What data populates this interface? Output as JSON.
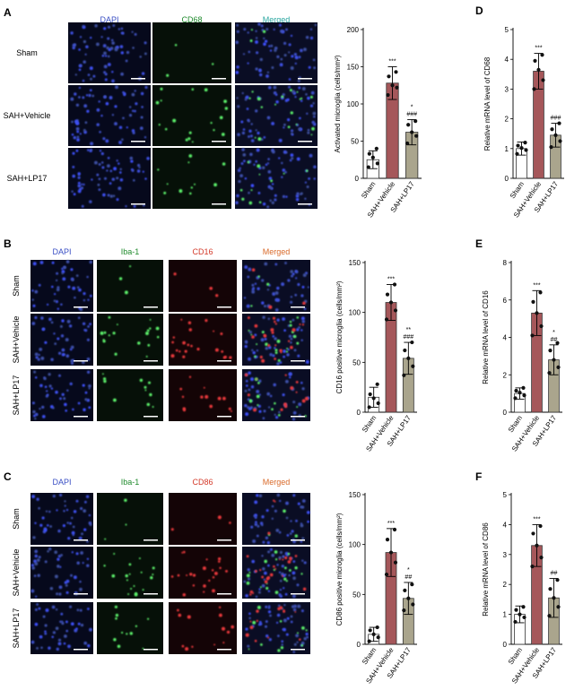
{
  "colors": {
    "sham_bar": "#ffffff",
    "vehicle_bar": "#a5575a",
    "lp17_bar": "#aaa58d",
    "dapi_label": "#3a4fc4",
    "green_label": "#1f8a2c",
    "red_label": "#d43a2a",
    "merged_label": "#d96a2a",
    "merged_label_a": "#2aa6a0",
    "micro_bg": "#0d1330"
  },
  "panels": [
    {
      "letter": "A",
      "channels": [
        {
          "label": "DAPI",
          "color": "dapi_label",
          "stain": "blue"
        },
        {
          "label": "CD68",
          "color": "green_label",
          "stain": "green"
        },
        {
          "label": "Merged",
          "color": "merged_label_a",
          "stain": "merged"
        }
      ],
      "row_labels": [
        "Sham",
        "SAH+Vehicle",
        "SAH+LP17"
      ],
      "row_label_style": "horizontal"
    },
    {
      "letter": "B",
      "channels": [
        {
          "label": "DAPI",
          "color": "dapi_label",
          "stain": "blue"
        },
        {
          "label": "Iba-1",
          "color": "green_label",
          "stain": "green"
        },
        {
          "label": "CD16",
          "color": "red_label",
          "stain": "red"
        },
        {
          "label": "Merged",
          "color": "merged_label",
          "stain": "merged"
        }
      ],
      "row_labels": [
        "Sham",
        "SAH+Vehicle",
        "SAH+LP17"
      ],
      "row_label_style": "vertical"
    },
    {
      "letter": "C",
      "channels": [
        {
          "label": "DAPI",
          "color": "dapi_label",
          "stain": "blue"
        },
        {
          "label": "Iba-1",
          "color": "green_label",
          "stain": "green"
        },
        {
          "label": "CD86",
          "color": "red_label",
          "stain": "red"
        },
        {
          "label": "Merged",
          "color": "merged_label",
          "stain": "merged"
        }
      ],
      "row_labels": [
        "Sham",
        "SAH+Vehicle",
        "SAH+LP17"
      ],
      "row_label_style": "vertical"
    }
  ],
  "chart_data": [
    {
      "type": "bar",
      "panel": "A",
      "ylabel": "Activated microglia (cells/mm²)",
      "ylim": [
        0,
        200
      ],
      "yticks": [
        0,
        50,
        100,
        150,
        200
      ],
      "categories": [
        "Sham",
        "SAH+Vehicle",
        "SAH+LP17"
      ],
      "values": [
        25,
        128,
        62
      ],
      "errors": [
        12,
        22,
        17
      ],
      "points": [
        [
          15,
          20,
          28,
          33,
          40
        ],
        [
          112,
          122,
          125,
          137,
          143
        ],
        [
          47,
          57,
          62,
          72,
          77
        ]
      ],
      "annotations": [
        [],
        [
          "***"
        ],
        [
          "*",
          "###"
        ]
      ]
    },
    {
      "type": "bar",
      "panel": "D",
      "ylabel": "Relative mRNA level of CD68",
      "ylim": [
        0,
        5
      ],
      "yticks": [
        0,
        1,
        2,
        3,
        4,
        5
      ],
      "categories": [
        "Sham",
        "SAH+Vehicle",
        "SAH+LP17"
      ],
      "values": [
        1.0,
        3.6,
        1.45
      ],
      "errors": [
        0.22,
        0.6,
        0.4
      ],
      "points": [
        [
          0.82,
          0.95,
          1.02,
          1.1,
          1.2
        ],
        [
          3.0,
          3.3,
          3.65,
          3.95,
          4.15
        ],
        [
          1.05,
          1.25,
          1.45,
          1.65,
          1.85
        ]
      ],
      "annotations": [
        [],
        [
          "***"
        ],
        [
          "###"
        ]
      ]
    },
    {
      "type": "bar",
      "panel": "B",
      "ylabel": "CD16 positive microglia (cells/mm²)",
      "ylim": [
        0,
        150
      ],
      "yticks": [
        0,
        50,
        100,
        150
      ],
      "categories": [
        "Sham",
        "SAH+Vehicle",
        "SAH+LP17"
      ],
      "values": [
        15,
        110,
        54
      ],
      "errors": [
        10,
        18,
        16
      ],
      "points": [
        [
          5,
          9,
          14,
          18,
          28
        ],
        [
          93,
          102,
          110,
          118,
          128
        ],
        [
          37,
          46,
          54,
          62,
          70
        ]
      ],
      "annotations": [
        [],
        [
          "***"
        ],
        [
          "**",
          "###"
        ]
      ]
    },
    {
      "type": "bar",
      "panel": "E",
      "ylabel": "Relative mRNA level of CD16",
      "ylim": [
        0,
        8
      ],
      "yticks": [
        0,
        2,
        4,
        6,
        8
      ],
      "categories": [
        "Sham",
        "SAH+Vehicle",
        "SAH+LP17"
      ],
      "values": [
        1.0,
        5.3,
        2.8
      ],
      "errors": [
        0.3,
        1.2,
        0.8
      ],
      "points": [
        [
          0.75,
          0.9,
          1.05,
          1.15,
          1.3
        ],
        [
          4.1,
          4.6,
          5.3,
          5.9,
          6.4
        ],
        [
          2.1,
          2.4,
          2.8,
          3.3,
          3.7
        ]
      ],
      "annotations": [
        [],
        [
          "***"
        ],
        [
          "*",
          "##"
        ]
      ]
    },
    {
      "type": "bar",
      "panel": "C",
      "ylabel": "CD86 positive microglia (cells/mm²)",
      "ylim": [
        0,
        150
      ],
      "yticks": [
        0,
        50,
        100,
        150
      ],
      "categories": [
        "Sham",
        "SAH+Vehicle",
        "SAH+LP17"
      ],
      "values": [
        10,
        92,
        46
      ],
      "errors": [
        7,
        24,
        16
      ],
      "points": [
        [
          3,
          7,
          10,
          14,
          17
        ],
        [
          70,
          82,
          92,
          105,
          115
        ],
        [
          34,
          40,
          46,
          54,
          60
        ]
      ],
      "annotations": [
        [],
        [
          "***"
        ],
        [
          "*",
          "##"
        ]
      ]
    },
    {
      "type": "bar",
      "panel": "F",
      "ylabel": "Relative mRNA level of CD86",
      "ylim": [
        0,
        5
      ],
      "yticks": [
        0,
        1,
        2,
        3,
        4,
        5
      ],
      "categories": [
        "Sham",
        "SAH+Vehicle",
        "SAH+LP17"
      ],
      "values": [
        1.0,
        3.3,
        1.55
      ],
      "errors": [
        0.28,
        0.7,
        0.65
      ],
      "points": [
        [
          0.75,
          0.9,
          1.0,
          1.15,
          1.25
        ],
        [
          2.6,
          2.9,
          3.3,
          3.7,
          3.95
        ],
        [
          0.95,
          1.25,
          1.55,
          1.85,
          2.15
        ]
      ],
      "annotations": [
        [],
        [
          "***"
        ],
        [
          "##"
        ]
      ]
    }
  ]
}
